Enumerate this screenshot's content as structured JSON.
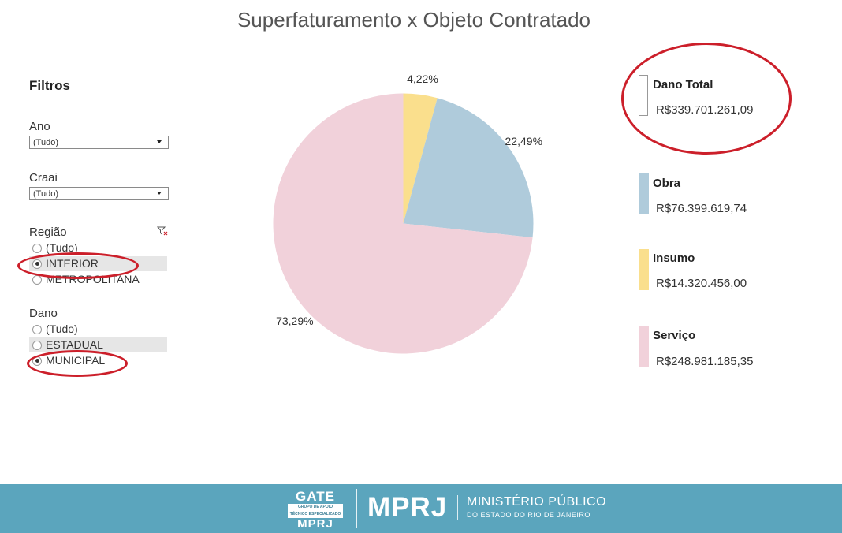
{
  "title": "Superfaturamento x Objeto Contratado",
  "filters": {
    "heading": "Filtros",
    "ano": {
      "label": "Ano",
      "value": "(Tudo)"
    },
    "craai": {
      "label": "Craai",
      "value": "(Tudo)"
    },
    "regiao": {
      "label": "Região",
      "options": [
        "(Tudo)",
        "INTERIOR",
        "METROPOLITANA"
      ],
      "selected": "INTERIOR"
    },
    "dano": {
      "label": "Dano",
      "options": [
        "(Tudo)",
        "ESTADUAL",
        "MUNICIPAL"
      ],
      "selected": "MUNICIPAL"
    }
  },
  "chart_data": {
    "type": "pie",
    "title": "Superfaturamento x Objeto Contratado",
    "slices": [
      {
        "name": "Insumo",
        "value": 4.22,
        "label": "4,22%",
        "color": "#fadf8d"
      },
      {
        "name": "Obra",
        "value": 22.49,
        "label": "22,49%",
        "color": "#afcbdb"
      },
      {
        "name": "Serviço",
        "value": 73.29,
        "label": "73,29%",
        "color": "#f1d1da"
      }
    ]
  },
  "legend": {
    "total": {
      "name": "Dano Total",
      "value": "R$339.701.261,09",
      "color": "#ffffff"
    },
    "items": [
      {
        "name": "Obra",
        "value": "R$76.399.619,74",
        "color": "#afcbdb"
      },
      {
        "name": "Insumo",
        "value": "R$14.320.456,00",
        "color": "#fadf8d"
      },
      {
        "name": "Serviço",
        "value": "R$248.981.185,35",
        "color": "#f1d1da"
      }
    ]
  },
  "footer": {
    "gate_title": "GATE",
    "gate_line1": "GRUPO DE APOIO",
    "gate_line2": "TÉCNICO ESPECIALIZADO",
    "gate_sub": "MPRJ",
    "brand": "MPRJ",
    "org_name": "MINISTÉRIO PÚBLICO",
    "org_sub": "DO ESTADO DO RIO DE JANEIRO",
    "background_color": "#5ba5bd"
  },
  "annotations_color": "#cc1f2a"
}
